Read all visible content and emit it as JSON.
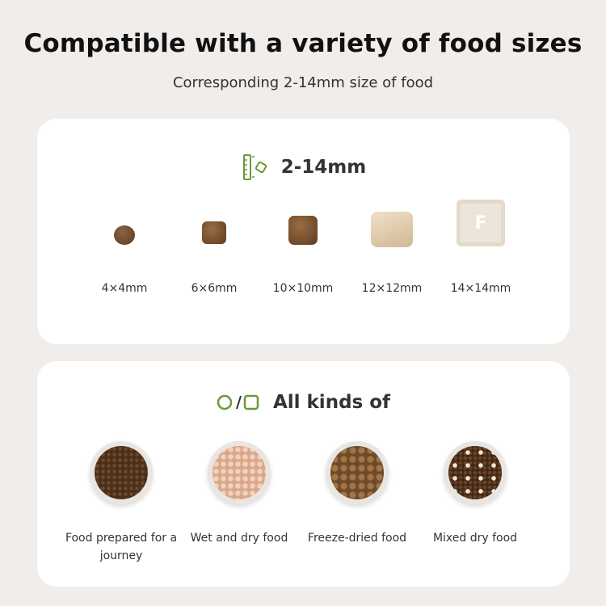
{
  "title": "Compatible with a variety of food sizes",
  "subtitle": "Corresponding 2-14mm size of food",
  "sizes_card": {
    "icon": "ruler-kibble-icon",
    "heading": "2-14mm",
    "items": [
      {
        "label": "4×4mm",
        "key_letter": ""
      },
      {
        "label": "6×6mm",
        "key_letter": ""
      },
      {
        "label": "10×10mm",
        "key_letter": ""
      },
      {
        "label": "12×12mm",
        "key_letter": ""
      },
      {
        "label": "14×14mm",
        "key_letter": "F"
      }
    ]
  },
  "types_card": {
    "icon": "circle-square-icon",
    "heading": "All kinds of",
    "items": [
      {
        "label": "Food prepared for a journey"
      },
      {
        "label": "Wet and dry food"
      },
      {
        "label": "Freeze-dried food"
      },
      {
        "label": "Mixed dry food"
      }
    ]
  },
  "colors": {
    "accent": "#6a9a36",
    "background": "#f0edea",
    "card": "#ffffff"
  }
}
